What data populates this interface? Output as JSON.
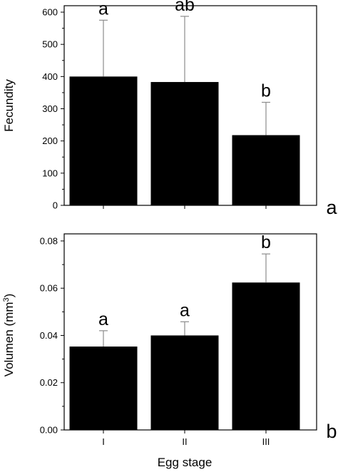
{
  "chart_data": [
    {
      "type": "bar",
      "panel_label": "a",
      "categories": [
        "I",
        "II",
        "III"
      ],
      "values": [
        400,
        383,
        218
      ],
      "error_upper": [
        575,
        587,
        320
      ],
      "significance_letters": [
        "a",
        "ab",
        "b"
      ],
      "xlabel": "",
      "ylabel": "Fecundity",
      "ylim": [
        0,
        620
      ],
      "yticks": [
        0,
        100,
        200,
        300,
        400,
        500,
        600
      ],
      "ytick_labels": [
        "0",
        "100",
        "200",
        "300",
        "400",
        "500",
        "600"
      ],
      "bar_color": "#000000",
      "error_bar_color": "#8c8c8c",
      "grid": false
    },
    {
      "type": "bar",
      "panel_label": "b",
      "categories": [
        "I",
        "II",
        "III"
      ],
      "values": [
        0.0353,
        0.04,
        0.0624
      ],
      "error_upper": [
        0.042,
        0.0458,
        0.0745
      ],
      "significance_letters": [
        "a",
        "a",
        "b"
      ],
      "xlabel": "Egg stage",
      "ylabel": "Volumen (mm3)",
      "ylabel_text": "Volumen (mm",
      "ylabel_superscript": "3",
      "ylabel_suffix": ")",
      "ylim": [
        0,
        0.083
      ],
      "yticks": [
        0,
        0.02,
        0.04,
        0.06,
        0.08
      ],
      "ytick_labels": [
        "0.00",
        "0.02",
        "0.04",
        "0.06",
        "0.08"
      ],
      "bar_color": "#000000",
      "error_bar_color": "#8c8c8c",
      "grid": false
    }
  ]
}
